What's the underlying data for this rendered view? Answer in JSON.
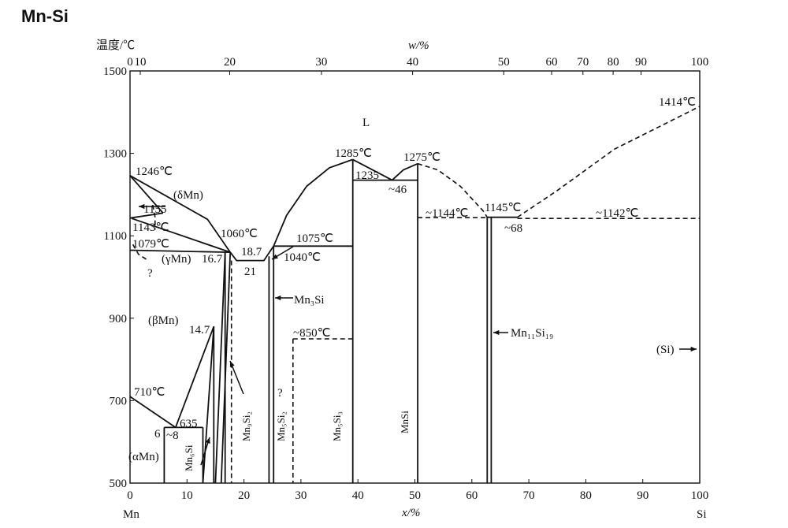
{
  "figure_title": "Mn-Si",
  "chart_data": {
    "type": "phase_diagram",
    "title": "Mn-Si",
    "xlabel": "x/%",
    "top_xlabel": "w/%",
    "ylabel": "温度/℃",
    "xlim": [
      0,
      100
    ],
    "ylim": [
      500,
      1500
    ],
    "x_ticks": [
      "0",
      "10",
      "20",
      "30",
      "40",
      "50",
      "60",
      "70",
      "80",
      "90",
      "100"
    ],
    "top_ticks": [
      "0",
      "10",
      "20",
      "30",
      "40",
      "50",
      "60",
      "70",
      "80",
      "90",
      "100"
    ],
    "y_ticks": [
      "500",
      "700",
      "900",
      "1100",
      "1300",
      "1500"
    ],
    "y_values": [
      500,
      700,
      900,
      1100,
      1300,
      1500
    ],
    "left_element": "Mn",
    "right_element": "Si",
    "top_scale_x_positions": [
      0,
      1.8,
      17.5,
      33.6,
      49.6,
      65.6,
      74.0,
      79.5,
      84.8,
      89.7,
      100
    ],
    "labels": {
      "liquid": "L",
      "t_mn_melt": "1246℃",
      "t_1155": "1155",
      "t_1143": "1143℃",
      "t_1079": "1079℃",
      "t_1060": "1060℃",
      "c_167": "16.7",
      "c_187": "18.7",
      "c_21": "21",
      "t_1075": "1075℃",
      "t_1040": "1040℃",
      "t_1285": "1285℃",
      "t_1235": "1235",
      "c_46": "~46",
      "t_1275": "1275℃",
      "t_1144": "~1144℃",
      "t_1145": "1145℃",
      "c_68": "~68",
      "t_1142": "~1142℃",
      "t_1414": "1414℃",
      "t_850": "~850℃",
      "c_147": "14.7",
      "t_710": "710℃",
      "t_635": "635",
      "c_6": "6",
      "c_8": "~8",
      "q1": "?",
      "q2": "?",
      "phase_delta": "(δMn)",
      "phase_gamma": "(γMn)",
      "phase_beta": "(βMn)",
      "phase_alpha": "(αMn)",
      "phase_si": "(Si)",
      "mn3si": "Mn₃Si",
      "mn11si19": "Mn₁₁Si₁₉",
      "mn6si": "Mn₆Si",
      "mn9si2": "Mn₉Si₂",
      "mn5si2": "Mn₅Si₂",
      "mn5si3": "Mn₅Si₃",
      "mnsi": "MnSi"
    },
    "solid_lines": [
      [
        [
          0,
          1246
        ],
        [
          13.6,
          1140
        ],
        [
          17.6,
          1060
        ]
      ],
      [
        [
          0,
          1246
        ],
        [
          5.8,
          1155
        ]
      ],
      [
        [
          0,
          1143
        ],
        [
          5.8,
          1155
        ]
      ],
      [
        [
          0.3,
          1142
        ],
        [
          17.6,
          1060
        ]
      ],
      [
        [
          0,
          1065
        ],
        [
          17.6,
          1060
        ]
      ],
      [
        [
          17.6,
          1060
        ],
        [
          18.7,
          1040
        ],
        [
          23.5,
          1040
        ],
        [
          25.2,
          1075
        ]
      ],
      [
        [
          16.7,
          1060
        ],
        [
          16.7,
          500
        ]
      ],
      [
        [
          16.7,
          1060
        ],
        [
          15.0,
          500
        ]
      ],
      [
        [
          17.6,
          1060
        ],
        [
          16.0,
          500
        ]
      ],
      [
        [
          14.7,
          880
        ],
        [
          14.7,
          500
        ]
      ],
      [
        [
          14.7,
          880
        ],
        [
          8.0,
          635
        ]
      ],
      [
        [
          14.7,
          880
        ],
        [
          12.8,
          500
        ]
      ],
      [
        [
          0,
          710
        ],
        [
          8.0,
          635
        ]
      ],
      [
        [
          6.0,
          635
        ],
        [
          12.8,
          635
        ]
      ],
      [
        [
          6.0,
          635
        ],
        [
          6.0,
          500
        ]
      ],
      [
        [
          12.8,
          635
        ],
        [
          12.8,
          500
        ]
      ],
      [
        [
          24.4,
          1050
        ],
        [
          24.4,
          500
        ]
      ],
      [
        [
          25.2,
          1075
        ],
        [
          25.2,
          500
        ]
      ],
      [
        [
          25.2,
          1075
        ],
        [
          39.1,
          1075
        ]
      ],
      [
        [
          25.2,
          1075
        ],
        [
          27.5,
          1150
        ],
        [
          31.0,
          1220
        ],
        [
          35.0,
          1265
        ],
        [
          39.1,
          1285
        ]
      ],
      [
        [
          39.1,
          1285
        ],
        [
          39.1,
          500
        ]
      ],
      [
        [
          39.1,
          1235
        ],
        [
          50.5,
          1235
        ]
      ],
      [
        [
          39.1,
          1285
        ],
        [
          46.0,
          1235
        ]
      ],
      [
        [
          46.0,
          1235
        ],
        [
          48.0,
          1260
        ],
        [
          50.5,
          1275
        ]
      ],
      [
        [
          50.5,
          1275
        ],
        [
          50.5,
          500
        ]
      ],
      [
        [
          62.7,
          1145
        ],
        [
          62.7,
          500
        ]
      ],
      [
        [
          63.4,
          1145
        ],
        [
          63.4,
          500
        ]
      ],
      [
        [
          62.7,
          1145
        ],
        [
          68.0,
          1145
        ]
      ]
    ],
    "dashed_lines": [
      [
        [
          0.5,
          1079
        ],
        [
          1.5,
          1055
        ],
        [
          3.2,
          1040
        ]
      ],
      [
        [
          4.0,
          1175
        ],
        [
          4.4,
          1145
        ],
        [
          4.4,
          1115
        ]
      ],
      [
        [
          17.8,
          1040
        ],
        [
          17.8,
          500
        ]
      ],
      [
        [
          28.6,
          850
        ],
        [
          28.6,
          500
        ]
      ],
      [
        [
          28.6,
          850
        ],
        [
          39.1,
          850
        ]
      ],
      [
        [
          50.5,
          1275
        ],
        [
          54.0,
          1260
        ],
        [
          58.0,
          1220
        ],
        [
          62.0,
          1160
        ],
        [
          62.7,
          1145
        ]
      ],
      [
        [
          50.5,
          1144
        ],
        [
          62.7,
          1144
        ]
      ],
      [
        [
          68.0,
          1142
        ],
        [
          100,
          1142
        ]
      ],
      [
        [
          68.0,
          1145
        ],
        [
          75.0,
          1210
        ],
        [
          85.0,
          1310
        ],
        [
          100,
          1414
        ]
      ]
    ],
    "arrows": [
      [
        [
          -1,
          0
        ],
        [
          0,
          0
        ]
      ],
      [
        [
          1,
          -3
        ],
        [
          0,
          0
        ]
      ],
      [
        [
          2,
          0
        ],
        [
          0,
          0
        ]
      ],
      [
        [
          -1,
          0
        ],
        [
          0,
          0
        ]
      ],
      [
        [
          2,
          0
        ],
        [
          0,
          0
        ]
      ],
      [
        [
          -1,
          0
        ],
        [
          0,
          0
        ]
      ],
      [
        [
          1,
          -3
        ],
        [
          0,
          0
        ]
      ]
    ]
  }
}
